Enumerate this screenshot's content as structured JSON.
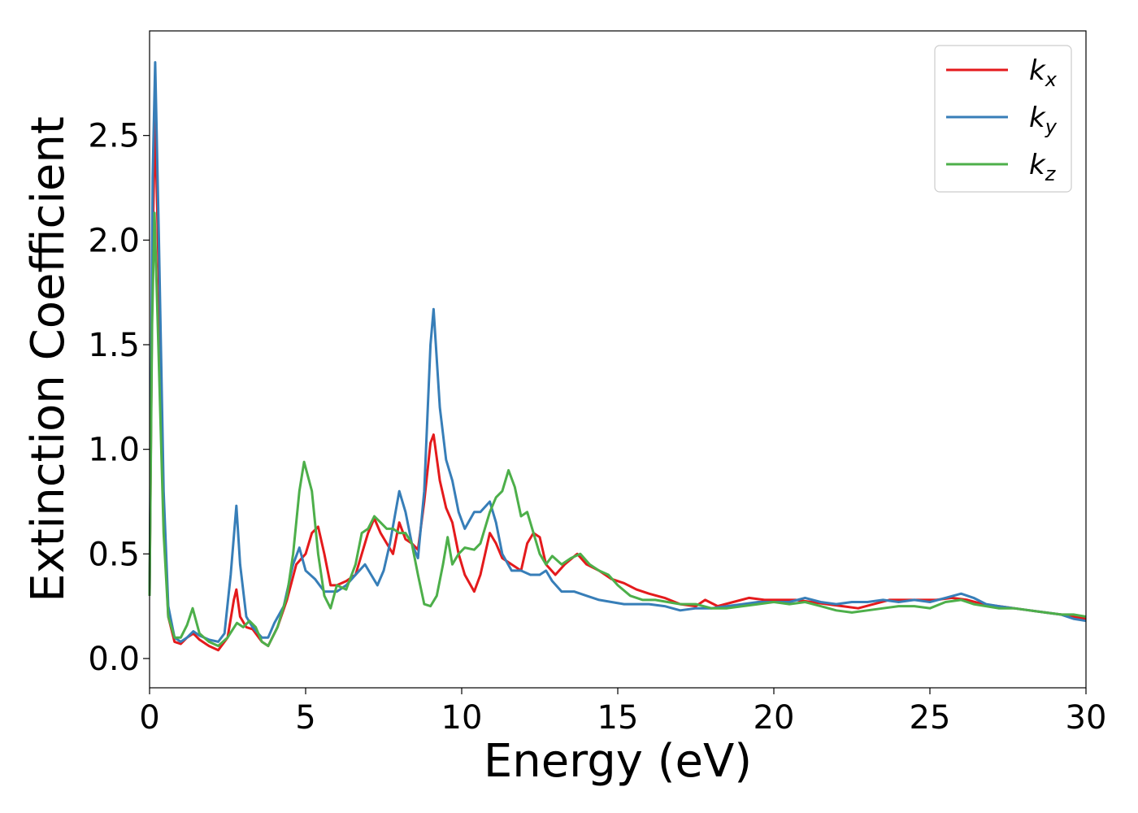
{
  "chart_data": {
    "type": "line",
    "title": "",
    "xlabel": "Energy (eV)",
    "ylabel": "Extinction Coefficient",
    "xlim": [
      0,
      30
    ],
    "ylim": [
      -0.14,
      3.0
    ],
    "xticks": [
      0,
      5,
      10,
      15,
      20,
      25,
      30
    ],
    "xtick_labels": [
      "0",
      "5",
      "10",
      "15",
      "20",
      "25",
      "30"
    ],
    "yticks": [
      0.0,
      0.5,
      1.0,
      1.5,
      2.0,
      2.5
    ],
    "ytick_labels": [
      "0.0",
      "0.5",
      "1.0",
      "1.5",
      "2.0",
      "2.5"
    ],
    "grid": false,
    "legend_position": "top-right",
    "series": [
      {
        "name": "k_x",
        "legend_main": "k",
        "legend_sub": "x",
        "color": "#e41a1c",
        "points": [
          [
            0,
            0.3
          ],
          [
            0.1,
            2.0
          ],
          [
            0.18,
            2.57
          ],
          [
            0.3,
            1.8
          ],
          [
            0.45,
            0.7
          ],
          [
            0.6,
            0.2
          ],
          [
            0.8,
            0.08
          ],
          [
            1.0,
            0.07
          ],
          [
            1.2,
            0.1
          ],
          [
            1.4,
            0.12
          ],
          [
            1.6,
            0.09
          ],
          [
            1.9,
            0.06
          ],
          [
            2.2,
            0.04
          ],
          [
            2.5,
            0.1
          ],
          [
            2.7,
            0.28
          ],
          [
            2.78,
            0.33
          ],
          [
            2.9,
            0.2
          ],
          [
            3.1,
            0.15
          ],
          [
            3.3,
            0.14
          ],
          [
            3.6,
            0.08
          ],
          [
            3.8,
            0.06
          ],
          [
            4.1,
            0.15
          ],
          [
            4.4,
            0.28
          ],
          [
            4.7,
            0.45
          ],
          [
            5.0,
            0.5
          ],
          [
            5.2,
            0.6
          ],
          [
            5.4,
            0.63
          ],
          [
            5.6,
            0.5
          ],
          [
            5.8,
            0.35
          ],
          [
            6.0,
            0.35
          ],
          [
            6.3,
            0.37
          ],
          [
            6.6,
            0.4
          ],
          [
            6.8,
            0.5
          ],
          [
            7.0,
            0.6
          ],
          [
            7.2,
            0.67
          ],
          [
            7.4,
            0.6
          ],
          [
            7.6,
            0.55
          ],
          [
            7.8,
            0.5
          ],
          [
            8.0,
            0.65
          ],
          [
            8.2,
            0.57
          ],
          [
            8.4,
            0.55
          ],
          [
            8.6,
            0.52
          ],
          [
            8.8,
            0.75
          ],
          [
            9.0,
            1.03
          ],
          [
            9.1,
            1.07
          ],
          [
            9.3,
            0.85
          ],
          [
            9.5,
            0.72
          ],
          [
            9.7,
            0.65
          ],
          [
            9.9,
            0.5
          ],
          [
            10.1,
            0.4
          ],
          [
            10.4,
            0.32
          ],
          [
            10.6,
            0.4
          ],
          [
            10.9,
            0.6
          ],
          [
            11.1,
            0.55
          ],
          [
            11.3,
            0.48
          ],
          [
            11.6,
            0.45
          ],
          [
            11.9,
            0.42
          ],
          [
            12.1,
            0.55
          ],
          [
            12.3,
            0.6
          ],
          [
            12.5,
            0.58
          ],
          [
            12.7,
            0.45
          ],
          [
            13.0,
            0.4
          ],
          [
            13.3,
            0.45
          ],
          [
            13.7,
            0.5
          ],
          [
            14.0,
            0.45
          ],
          [
            14.4,
            0.42
          ],
          [
            14.8,
            0.38
          ],
          [
            15.2,
            0.36
          ],
          [
            15.6,
            0.33
          ],
          [
            16.0,
            0.31
          ],
          [
            16.5,
            0.29
          ],
          [
            17.0,
            0.26
          ],
          [
            17.5,
            0.25
          ],
          [
            17.8,
            0.28
          ],
          [
            18.2,
            0.25
          ],
          [
            18.7,
            0.27
          ],
          [
            19.2,
            0.29
          ],
          [
            19.7,
            0.28
          ],
          [
            20.2,
            0.28
          ],
          [
            20.7,
            0.28
          ],
          [
            21.2,
            0.27
          ],
          [
            21.7,
            0.26
          ],
          [
            22.2,
            0.25
          ],
          [
            22.7,
            0.24
          ],
          [
            23.2,
            0.26
          ],
          [
            23.7,
            0.28
          ],
          [
            24.2,
            0.28
          ],
          [
            24.7,
            0.28
          ],
          [
            25.2,
            0.28
          ],
          [
            25.7,
            0.29
          ],
          [
            26.2,
            0.28
          ],
          [
            26.7,
            0.26
          ],
          [
            27.2,
            0.25
          ],
          [
            27.7,
            0.24
          ],
          [
            28.2,
            0.23
          ],
          [
            28.7,
            0.22
          ],
          [
            29.2,
            0.21
          ],
          [
            29.6,
            0.2
          ],
          [
            30.0,
            0.19
          ]
        ]
      },
      {
        "name": "k_y",
        "legend_main": "k",
        "legend_sub": "y",
        "color": "#377eb8",
        "points": [
          [
            0,
            0.3
          ],
          [
            0.1,
            2.3
          ],
          [
            0.18,
            2.85
          ],
          [
            0.3,
            2.0
          ],
          [
            0.45,
            0.8
          ],
          [
            0.6,
            0.25
          ],
          [
            0.8,
            0.1
          ],
          [
            1.0,
            0.08
          ],
          [
            1.2,
            0.1
          ],
          [
            1.4,
            0.13
          ],
          [
            1.6,
            0.11
          ],
          [
            1.9,
            0.09
          ],
          [
            2.2,
            0.08
          ],
          [
            2.4,
            0.12
          ],
          [
            2.6,
            0.4
          ],
          [
            2.78,
            0.73
          ],
          [
            2.9,
            0.45
          ],
          [
            3.1,
            0.2
          ],
          [
            3.3,
            0.15
          ],
          [
            3.6,
            0.1
          ],
          [
            3.8,
            0.1
          ],
          [
            4.0,
            0.17
          ],
          [
            4.3,
            0.25
          ],
          [
            4.6,
            0.45
          ],
          [
            4.8,
            0.53
          ],
          [
            5.0,
            0.42
          ],
          [
            5.3,
            0.38
          ],
          [
            5.6,
            0.32
          ],
          [
            6.0,
            0.32
          ],
          [
            6.3,
            0.35
          ],
          [
            6.6,
            0.4
          ],
          [
            6.9,
            0.45
          ],
          [
            7.1,
            0.4
          ],
          [
            7.3,
            0.35
          ],
          [
            7.5,
            0.42
          ],
          [
            7.7,
            0.55
          ],
          [
            8.0,
            0.8
          ],
          [
            8.2,
            0.7
          ],
          [
            8.4,
            0.55
          ],
          [
            8.6,
            0.48
          ],
          [
            8.8,
            0.8
          ],
          [
            9.0,
            1.5
          ],
          [
            9.1,
            1.67
          ],
          [
            9.3,
            1.2
          ],
          [
            9.5,
            0.95
          ],
          [
            9.7,
            0.85
          ],
          [
            9.9,
            0.7
          ],
          [
            10.1,
            0.62
          ],
          [
            10.4,
            0.7
          ],
          [
            10.6,
            0.7
          ],
          [
            10.9,
            0.75
          ],
          [
            11.1,
            0.65
          ],
          [
            11.3,
            0.5
          ],
          [
            11.6,
            0.42
          ],
          [
            11.9,
            0.42
          ],
          [
            12.2,
            0.4
          ],
          [
            12.5,
            0.4
          ],
          [
            12.7,
            0.42
          ],
          [
            12.9,
            0.37
          ],
          [
            13.2,
            0.32
          ],
          [
            13.6,
            0.32
          ],
          [
            14.0,
            0.3
          ],
          [
            14.4,
            0.28
          ],
          [
            14.8,
            0.27
          ],
          [
            15.2,
            0.26
          ],
          [
            15.6,
            0.26
          ],
          [
            16.0,
            0.26
          ],
          [
            16.5,
            0.25
          ],
          [
            17.0,
            0.23
          ],
          [
            17.5,
            0.24
          ],
          [
            18.0,
            0.24
          ],
          [
            18.5,
            0.25
          ],
          [
            19.0,
            0.26
          ],
          [
            19.5,
            0.27
          ],
          [
            20.0,
            0.27
          ],
          [
            20.5,
            0.27
          ],
          [
            21.0,
            0.29
          ],
          [
            21.5,
            0.27
          ],
          [
            22.0,
            0.26
          ],
          [
            22.5,
            0.27
          ],
          [
            23.0,
            0.27
          ],
          [
            23.5,
            0.28
          ],
          [
            24.0,
            0.27
          ],
          [
            24.5,
            0.28
          ],
          [
            25.0,
            0.27
          ],
          [
            25.5,
            0.29
          ],
          [
            26.0,
            0.31
          ],
          [
            26.4,
            0.29
          ],
          [
            26.8,
            0.26
          ],
          [
            27.2,
            0.25
          ],
          [
            27.7,
            0.24
          ],
          [
            28.2,
            0.23
          ],
          [
            28.7,
            0.22
          ],
          [
            29.2,
            0.21
          ],
          [
            29.6,
            0.19
          ],
          [
            30.0,
            0.18
          ]
        ]
      },
      {
        "name": "k_z",
        "legend_main": "k",
        "legend_sub": "z",
        "color": "#4daf4a",
        "points": [
          [
            0,
            0.3
          ],
          [
            0.08,
            1.6
          ],
          [
            0.16,
            2.13
          ],
          [
            0.28,
            1.5
          ],
          [
            0.45,
            0.6
          ],
          [
            0.6,
            0.2
          ],
          [
            0.8,
            0.1
          ],
          [
            1.0,
            0.1
          ],
          [
            1.2,
            0.16
          ],
          [
            1.38,
            0.24
          ],
          [
            1.6,
            0.12
          ],
          [
            1.9,
            0.08
          ],
          [
            2.2,
            0.06
          ],
          [
            2.5,
            0.1
          ],
          [
            2.8,
            0.17
          ],
          [
            3.0,
            0.15
          ],
          [
            3.2,
            0.18
          ],
          [
            3.4,
            0.15
          ],
          [
            3.6,
            0.08
          ],
          [
            3.8,
            0.06
          ],
          [
            4.1,
            0.15
          ],
          [
            4.4,
            0.3
          ],
          [
            4.6,
            0.5
          ],
          [
            4.8,
            0.8
          ],
          [
            4.95,
            0.94
          ],
          [
            5.2,
            0.8
          ],
          [
            5.4,
            0.5
          ],
          [
            5.6,
            0.3
          ],
          [
            5.8,
            0.24
          ],
          [
            6.0,
            0.35
          ],
          [
            6.3,
            0.33
          ],
          [
            6.6,
            0.45
          ],
          [
            6.8,
            0.6
          ],
          [
            7.0,
            0.62
          ],
          [
            7.2,
            0.68
          ],
          [
            7.4,
            0.65
          ],
          [
            7.6,
            0.62
          ],
          [
            7.8,
            0.62
          ],
          [
            8.0,
            0.6
          ],
          [
            8.2,
            0.6
          ],
          [
            8.4,
            0.55
          ],
          [
            8.6,
            0.4
          ],
          [
            8.8,
            0.26
          ],
          [
            9.0,
            0.25
          ],
          [
            9.2,
            0.3
          ],
          [
            9.4,
            0.45
          ],
          [
            9.55,
            0.58
          ],
          [
            9.7,
            0.45
          ],
          [
            9.9,
            0.5
          ],
          [
            10.1,
            0.53
          ],
          [
            10.4,
            0.52
          ],
          [
            10.6,
            0.55
          ],
          [
            10.9,
            0.7
          ],
          [
            11.1,
            0.77
          ],
          [
            11.3,
            0.8
          ],
          [
            11.5,
            0.9
          ],
          [
            11.7,
            0.82
          ],
          [
            11.9,
            0.68
          ],
          [
            12.1,
            0.7
          ],
          [
            12.3,
            0.6
          ],
          [
            12.5,
            0.5
          ],
          [
            12.7,
            0.45
          ],
          [
            12.9,
            0.49
          ],
          [
            13.2,
            0.45
          ],
          [
            13.5,
            0.48
          ],
          [
            13.8,
            0.5
          ],
          [
            14.1,
            0.45
          ],
          [
            14.4,
            0.42
          ],
          [
            14.7,
            0.4
          ],
          [
            15.0,
            0.35
          ],
          [
            15.4,
            0.3
          ],
          [
            15.8,
            0.28
          ],
          [
            16.2,
            0.28
          ],
          [
            16.6,
            0.27
          ],
          [
            17.0,
            0.26
          ],
          [
            17.5,
            0.26
          ],
          [
            18.0,
            0.24
          ],
          [
            18.5,
            0.24
          ],
          [
            19.0,
            0.25
          ],
          [
            19.5,
            0.26
          ],
          [
            20.0,
            0.27
          ],
          [
            20.5,
            0.26
          ],
          [
            21.0,
            0.27
          ],
          [
            21.5,
            0.25
          ],
          [
            22.0,
            0.23
          ],
          [
            22.5,
            0.22
          ],
          [
            23.0,
            0.23
          ],
          [
            23.5,
            0.24
          ],
          [
            24.0,
            0.25
          ],
          [
            24.5,
            0.25
          ],
          [
            25.0,
            0.24
          ],
          [
            25.5,
            0.27
          ],
          [
            26.0,
            0.28
          ],
          [
            26.4,
            0.26
          ],
          [
            26.8,
            0.25
          ],
          [
            27.2,
            0.24
          ],
          [
            27.7,
            0.24
          ],
          [
            28.2,
            0.23
          ],
          [
            28.7,
            0.22
          ],
          [
            29.2,
            0.21
          ],
          [
            29.6,
            0.21
          ],
          [
            30.0,
            0.2
          ]
        ]
      }
    ]
  }
}
